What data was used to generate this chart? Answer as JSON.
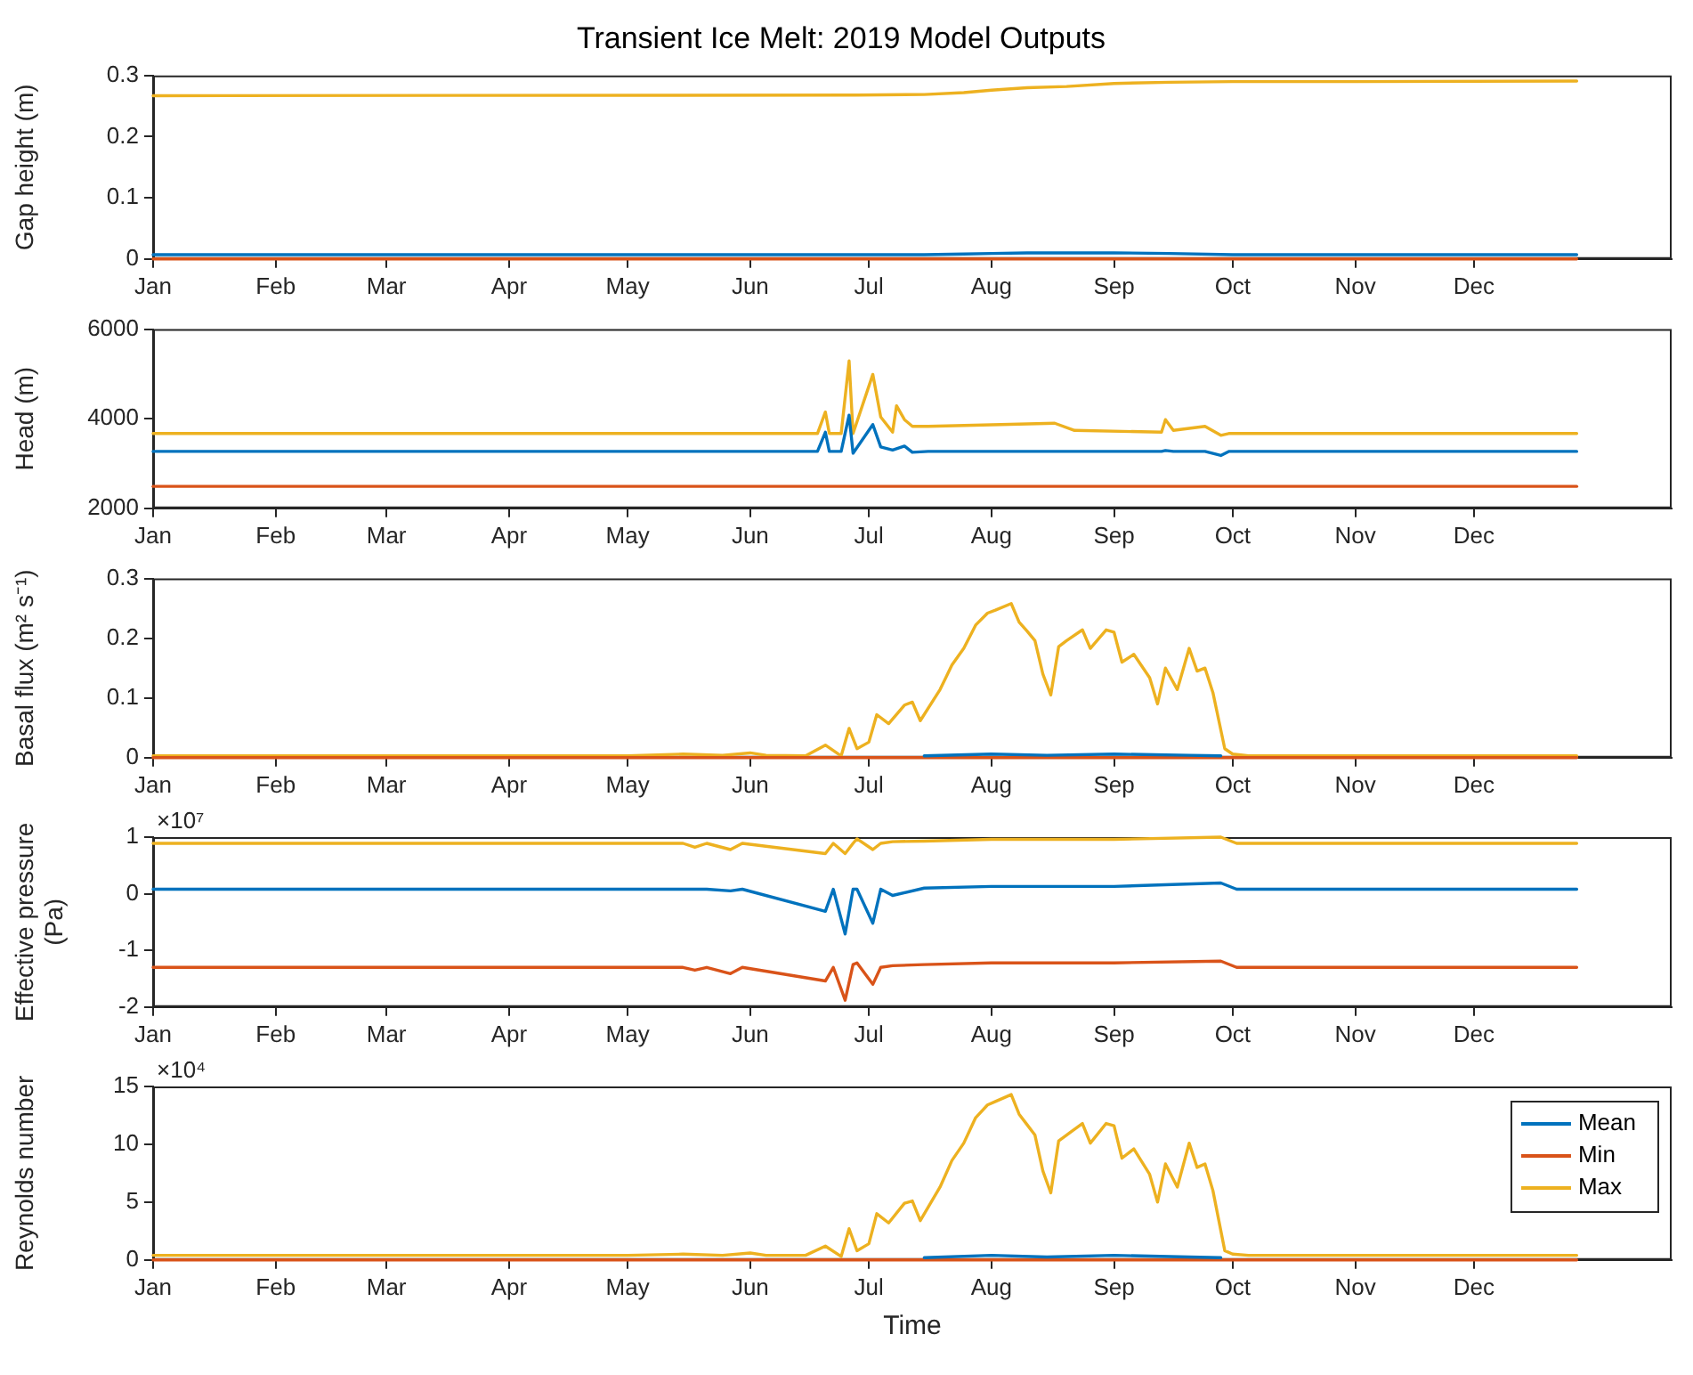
{
  "chart_data": [
    {
      "type": "line",
      "title": "Transient Ice Melt: 2019 Model Outputs",
      "ylabel": "Gap height (m)",
      "grid": false,
      "marker": "none",
      "xlim": [
        "2019-01-01",
        "2020-01-20"
      ],
      "xticks": [
        {
          "value": "2019-01-01",
          "label": "Jan"
        },
        {
          "value": "2019-02-01",
          "label": "Feb"
        },
        {
          "value": "2019-03-01",
          "label": "Mar"
        },
        {
          "value": "2019-04-01",
          "label": "Apr"
        },
        {
          "value": "2019-05-01",
          "label": "May"
        },
        {
          "value": "2019-06-01",
          "label": "Jun"
        },
        {
          "value": "2019-07-01",
          "label": "Jul"
        },
        {
          "value": "2019-08-01",
          "label": "Aug"
        },
        {
          "value": "2019-09-01",
          "label": "Sep"
        },
        {
          "value": "2019-10-01",
          "label": "Oct"
        },
        {
          "value": "2019-11-01",
          "label": "Nov"
        },
        {
          "value": "2019-12-01",
          "label": "Dec"
        }
      ],
      "ylim": [
        0,
        0.3
      ],
      "yticks": [
        0,
        0.1,
        0.2,
        0.3
      ],
      "x": [
        "2019-01-01",
        "2019-06-28",
        "2019-07-15",
        "2019-07-25",
        "2019-08-01",
        "2019-08-10",
        "2019-08-20",
        "2019-09-01",
        "2019-09-15",
        "2019-10-01",
        "2019-11-01",
        "2019-12-27"
      ],
      "series": [
        {
          "color": "#0072bd",
          "values": [
            0.007,
            0.007,
            0.007,
            0.008,
            0.009,
            0.01,
            0.01,
            0.01,
            0.009,
            0.007,
            0.007,
            0.007
          ]
        },
        {
          "color": "#d95319",
          "values": [
            0,
            0,
            0,
            0,
            0,
            0,
            0,
            0,
            0,
            0,
            0,
            0
          ]
        },
        {
          "color": "#edb120",
          "values": [
            0.267,
            0.268,
            0.269,
            0.272,
            0.276,
            0.28,
            0.282,
            0.287,
            0.289,
            0.29,
            0.29,
            0.291
          ]
        }
      ]
    },
    {
      "type": "line",
      "ylabel": "Head (m)",
      "grid": false,
      "marker": "none",
      "xlim": [
        "2019-01-01",
        "2020-01-20"
      ],
      "xticks": [
        {
          "value": "2019-01-01",
          "label": "Jan"
        },
        {
          "value": "2019-02-01",
          "label": "Feb"
        },
        {
          "value": "2019-03-01",
          "label": "Mar"
        },
        {
          "value": "2019-04-01",
          "label": "Apr"
        },
        {
          "value": "2019-05-01",
          "label": "May"
        },
        {
          "value": "2019-06-01",
          "label": "Jun"
        },
        {
          "value": "2019-07-01",
          "label": "Jul"
        },
        {
          "value": "2019-08-01",
          "label": "Aug"
        },
        {
          "value": "2019-09-01",
          "label": "Sep"
        },
        {
          "value": "2019-10-01",
          "label": "Oct"
        },
        {
          "value": "2019-11-01",
          "label": "Nov"
        },
        {
          "value": "2019-12-01",
          "label": "Dec"
        }
      ],
      "ylim": [
        2000,
        6000
      ],
      "yticks": [
        2000,
        4000,
        6000
      ],
      "x": [
        "2019-01-01",
        "2019-06-18",
        "2019-06-20",
        "2019-06-21",
        "2019-06-24",
        "2019-06-26",
        "2019-06-27",
        "2019-07-02",
        "2019-07-04",
        "2019-07-07",
        "2019-07-08",
        "2019-07-10",
        "2019-07-12",
        "2019-07-16",
        "2019-08-17",
        "2019-08-22",
        "2019-09-13",
        "2019-09-14",
        "2019-09-16",
        "2019-09-24",
        "2019-09-28",
        "2019-09-30",
        "2019-12-27"
      ],
      "series": [
        {
          "color": "#0072bd",
          "values": [
            3270,
            3270,
            3700,
            3270,
            3270,
            4080,
            3230,
            3870,
            3370,
            3300,
            3330,
            3390,
            3250,
            3270,
            3270,
            3270,
            3270,
            3290,
            3270,
            3270,
            3180,
            3270,
            3270
          ]
        },
        {
          "color": "#d95319",
          "values": [
            2490,
            2490,
            2490,
            2490,
            2490,
            2490,
            2490,
            2490,
            2490,
            2490,
            2490,
            2490,
            2490,
            2490,
            2490,
            2490,
            2490,
            2490,
            2490,
            2490,
            2490,
            2490,
            2490
          ]
        },
        {
          "color": "#edb120",
          "values": [
            3670,
            3670,
            4150,
            3670,
            3670,
            5290,
            3670,
            4990,
            4040,
            3700,
            4290,
            3980,
            3830,
            3830,
            3900,
            3740,
            3700,
            3980,
            3740,
            3830,
            3630,
            3670,
            3670
          ]
        }
      ]
    },
    {
      "type": "line",
      "ylabel": "Basal flux (m² s⁻¹)",
      "grid": false,
      "marker": "none",
      "xlim": [
        "2019-01-01",
        "2020-01-20"
      ],
      "xticks": [
        {
          "value": "2019-01-01",
          "label": "Jan"
        },
        {
          "value": "2019-02-01",
          "label": "Feb"
        },
        {
          "value": "2019-03-01",
          "label": "Mar"
        },
        {
          "value": "2019-04-01",
          "label": "Apr"
        },
        {
          "value": "2019-05-01",
          "label": "May"
        },
        {
          "value": "2019-06-01",
          "label": "Jun"
        },
        {
          "value": "2019-07-01",
          "label": "Jul"
        },
        {
          "value": "2019-08-01",
          "label": "Aug"
        },
        {
          "value": "2019-09-01",
          "label": "Sep"
        },
        {
          "value": "2019-10-01",
          "label": "Oct"
        },
        {
          "value": "2019-11-01",
          "label": "Nov"
        },
        {
          "value": "2019-12-01",
          "label": "Dec"
        }
      ],
      "ylim": [
        0,
        0.3
      ],
      "yticks": [
        0,
        0.1,
        0.2,
        0.3
      ],
      "series": [
        {
          "color": "#0072bd",
          "x": [
            "2019-07-15",
            "2019-08-01",
            "2019-08-15",
            "2019-09-01",
            "2019-09-20",
            "2019-09-28"
          ],
          "values": [
            0.003,
            0.006,
            0.004,
            0.006,
            0.004,
            0.003
          ]
        },
        {
          "color": "#d95319",
          "x": [
            "2019-01-01",
            "2019-12-27"
          ],
          "values": [
            0,
            0
          ]
        },
        {
          "color": "#edb120",
          "x": [
            "2019-01-01",
            "2019-05-01",
            "2019-05-15",
            "2019-05-25",
            "2019-06-01",
            "2019-06-05",
            "2019-06-15",
            "2019-06-20",
            "2019-06-24",
            "2019-06-26",
            "2019-06-28",
            "2019-07-01",
            "2019-07-03",
            "2019-07-06",
            "2019-07-10",
            "2019-07-12",
            "2019-07-14",
            "2019-07-19",
            "2019-07-22",
            "2019-07-25",
            "2019-07-28",
            "2019-07-31",
            "2019-08-02",
            "2019-08-06",
            "2019-08-08",
            "2019-08-10",
            "2019-08-12",
            "2019-08-14",
            "2019-08-16",
            "2019-08-18",
            "2019-08-20",
            "2019-08-24",
            "2019-08-26",
            "2019-08-30",
            "2019-09-01",
            "2019-09-03",
            "2019-09-06",
            "2019-09-10",
            "2019-09-12",
            "2019-09-14",
            "2019-09-17",
            "2019-09-20",
            "2019-09-22",
            "2019-09-24",
            "2019-09-26",
            "2019-09-29",
            "2019-10-01",
            "2019-10-05",
            "2019-12-27"
          ],
          "values": [
            0.003,
            0.003,
            0.006,
            0.004,
            0.008,
            0.004,
            0.003,
            0.021,
            0.003,
            0.049,
            0.015,
            0.026,
            0.072,
            0.057,
            0.088,
            0.093,
            0.062,
            0.114,
            0.155,
            0.183,
            0.222,
            0.242,
            0.247,
            0.258,
            0.227,
            0.212,
            0.196,
            0.14,
            0.105,
            0.186,
            0.196,
            0.214,
            0.183,
            0.214,
            0.21,
            0.16,
            0.173,
            0.134,
            0.09,
            0.15,
            0.114,
            0.183,
            0.145,
            0.15,
            0.109,
            0.015,
            0.006,
            0.003,
            0.003
          ]
        }
      ]
    },
    {
      "type": "line",
      "ylabel": "Effective pressure (Pa)",
      "grid": false,
      "marker": "none",
      "annotations": [
        "×10⁷"
      ],
      "xlim": [
        "2019-01-01",
        "2020-01-20"
      ],
      "xticks": [
        {
          "value": "2019-01-01",
          "label": "Jan"
        },
        {
          "value": "2019-02-01",
          "label": "Feb"
        },
        {
          "value": "2019-03-01",
          "label": "Mar"
        },
        {
          "value": "2019-04-01",
          "label": "Apr"
        },
        {
          "value": "2019-05-01",
          "label": "May"
        },
        {
          "value": "2019-06-01",
          "label": "Jun"
        },
        {
          "value": "2019-07-01",
          "label": "Jul"
        },
        {
          "value": "2019-08-01",
          "label": "Aug"
        },
        {
          "value": "2019-09-01",
          "label": "Sep"
        },
        {
          "value": "2019-10-01",
          "label": "Oct"
        },
        {
          "value": "2019-11-01",
          "label": "Nov"
        },
        {
          "value": "2019-12-01",
          "label": "Dec"
        }
      ],
      "ylim": [
        -2,
        1
      ],
      "yticks": [
        -2,
        -1,
        0,
        1
      ],
      "x": [
        "2019-01-01",
        "2019-05-15",
        "2019-05-18",
        "2019-05-21",
        "2019-05-27",
        "2019-05-30",
        "2019-06-20",
        "2019-06-22",
        "2019-06-25",
        "2019-06-27",
        "2019-06-28",
        "2019-07-02",
        "2019-07-04",
        "2019-07-07",
        "2019-07-15",
        "2019-08-01",
        "2019-09-01",
        "2019-09-28",
        "2019-10-02",
        "2019-12-27"
      ],
      "series": [
        {
          "color": "#0072bd",
          "values": [
            0.08,
            0.08,
            0.08,
            0.08,
            0.05,
            0.08,
            -0.31,
            0.08,
            -0.71,
            0.08,
            0.08,
            -0.52,
            0.08,
            -0.03,
            0.1,
            0.13,
            0.13,
            0.19,
            0.08,
            0.08
          ]
        },
        {
          "color": "#d95319",
          "values": [
            -1.3,
            -1.3,
            -1.35,
            -1.3,
            -1.41,
            -1.3,
            -1.54,
            -1.3,
            -1.88,
            -1.25,
            -1.22,
            -1.6,
            -1.3,
            -1.27,
            -1.25,
            -1.22,
            -1.22,
            -1.19,
            -1.3,
            -1.3
          ]
        },
        {
          "color": "#edb120",
          "values": [
            0.89,
            0.89,
            0.82,
            0.89,
            0.78,
            0.89,
            0.71,
            0.89,
            0.71,
            0.89,
            0.97,
            0.78,
            0.89,
            0.92,
            0.93,
            0.96,
            0.96,
            1,
            0.89,
            0.89
          ]
        }
      ]
    },
    {
      "type": "line",
      "ylabel": "Reynolds number",
      "xlabel": "Time",
      "grid": false,
      "marker": "none",
      "legend": "top right",
      "annotations": [
        "×10⁴"
      ],
      "xlim": [
        "2019-01-01",
        "2020-01-20"
      ],
      "xticks": [
        {
          "value": "2019-01-01",
          "label": "Jan"
        },
        {
          "value": "2019-02-01",
          "label": "Feb"
        },
        {
          "value": "2019-03-01",
          "label": "Mar"
        },
        {
          "value": "2019-04-01",
          "label": "Apr"
        },
        {
          "value": "2019-05-01",
          "label": "May"
        },
        {
          "value": "2019-06-01",
          "label": "Jun"
        },
        {
          "value": "2019-07-01",
          "label": "Jul"
        },
        {
          "value": "2019-08-01",
          "label": "Aug"
        },
        {
          "value": "2019-09-01",
          "label": "Sep"
        },
        {
          "value": "2019-10-01",
          "label": "Oct"
        },
        {
          "value": "2019-11-01",
          "label": "Nov"
        },
        {
          "value": "2019-12-01",
          "label": "Dec"
        }
      ],
      "ylim": [
        0,
        15
      ],
      "yticks": [
        0,
        5,
        10,
        15
      ],
      "series": [
        {
          "name": "Mean",
          "color": "#0072bd",
          "x": [
            "2019-07-15",
            "2019-08-01",
            "2019-08-15",
            "2019-09-01",
            "2019-09-20",
            "2019-09-28"
          ],
          "values": [
            0.2,
            0.4,
            0.25,
            0.4,
            0.25,
            0.2
          ]
        },
        {
          "name": "Min",
          "color": "#d95319",
          "x": [
            "2019-01-01",
            "2019-12-27"
          ],
          "values": [
            0,
            0
          ]
        },
        {
          "name": "Max",
          "color": "#edb120",
          "x": [
            "2019-01-01",
            "2019-05-01",
            "2019-05-15",
            "2019-05-25",
            "2019-06-01",
            "2019-06-05",
            "2019-06-15",
            "2019-06-20",
            "2019-06-24",
            "2019-06-26",
            "2019-06-28",
            "2019-07-01",
            "2019-07-03",
            "2019-07-06",
            "2019-07-10",
            "2019-07-12",
            "2019-07-14",
            "2019-07-19",
            "2019-07-22",
            "2019-07-25",
            "2019-07-28",
            "2019-07-31",
            "2019-08-02",
            "2019-08-06",
            "2019-08-08",
            "2019-08-10",
            "2019-08-12",
            "2019-08-14",
            "2019-08-16",
            "2019-08-18",
            "2019-08-20",
            "2019-08-24",
            "2019-08-26",
            "2019-08-30",
            "2019-09-01",
            "2019-09-03",
            "2019-09-06",
            "2019-09-10",
            "2019-09-12",
            "2019-09-14",
            "2019-09-17",
            "2019-09-20",
            "2019-09-22",
            "2019-09-24",
            "2019-09-26",
            "2019-09-29",
            "2019-10-01",
            "2019-10-05",
            "2019-12-27"
          ],
          "values": [
            0.4,
            0.4,
            0.5,
            0.4,
            0.6,
            0.4,
            0.4,
            1.2,
            0.3,
            2.7,
            0.8,
            1.4,
            4,
            3.2,
            4.9,
            5.1,
            3.4,
            6.3,
            8.6,
            10.1,
            12.3,
            13.4,
            13.7,
            14.3,
            12.6,
            11.7,
            10.8,
            7.7,
            5.8,
            10.3,
            10.8,
            11.8,
            10.1,
            11.8,
            11.6,
            8.8,
            9.6,
            7.4,
            5,
            8.3,
            6.3,
            10.1,
            8,
            8.3,
            6,
            0.8,
            0.5,
            0.4,
            0.4
          ]
        }
      ]
    }
  ]
}
